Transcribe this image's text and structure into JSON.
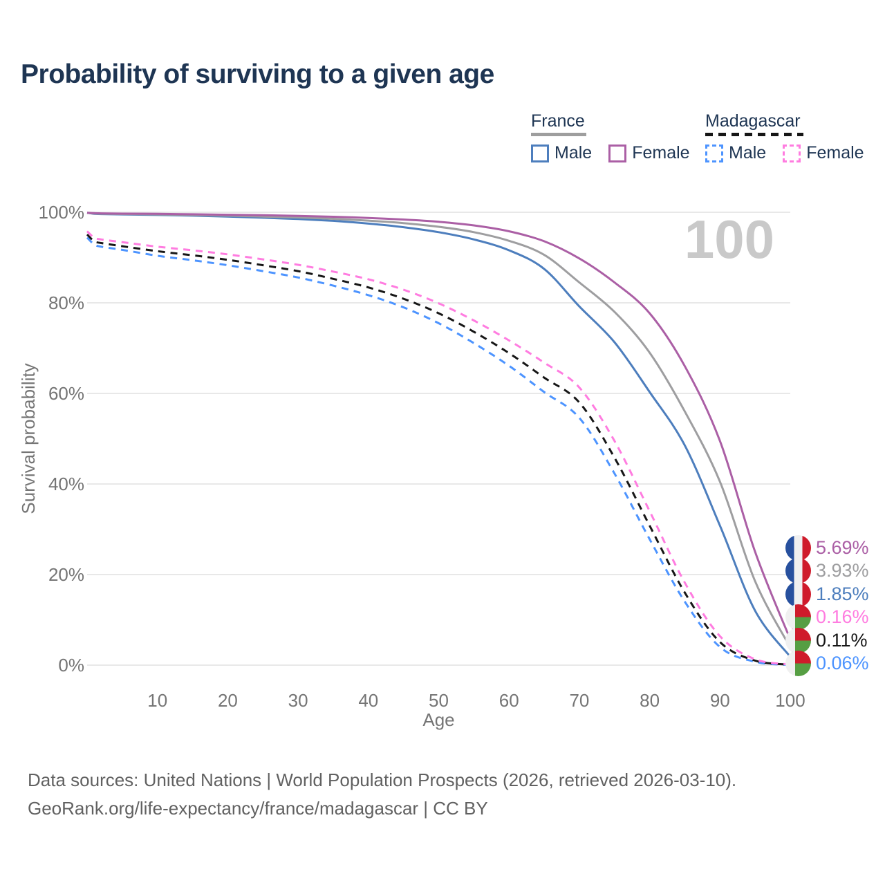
{
  "title": "Probability of surviving to a given age",
  "legend": {
    "groups": [
      {
        "name": "France",
        "line_style": "solid",
        "rule_color": "#9e9e9e",
        "items": [
          {
            "label": "Male",
            "color": "#4d7ebd",
            "dashed": false
          },
          {
            "label": "Female",
            "color": "#ab5fa5",
            "dashed": false
          }
        ]
      },
      {
        "name": "Madagascar",
        "line_style": "dashed",
        "rule_color": "#161616",
        "items": [
          {
            "label": "Male",
            "color": "#4d94ff",
            "dashed": true
          },
          {
            "label": "Female",
            "color": "#ff7ce0",
            "dashed": true
          }
        ]
      }
    ]
  },
  "chart_data": {
    "type": "line",
    "title": "Probability of surviving to a given age",
    "xlabel": "Age",
    "ylabel": "Survival probability",
    "xlim": [
      0,
      100
    ],
    "ylim": [
      0,
      100
    ],
    "grid": "horizontal",
    "legend_position": "top-right",
    "watermark": "100",
    "x_tick_values": [
      10,
      20,
      30,
      40,
      50,
      60,
      70,
      80,
      90,
      100
    ],
    "x_tick_labels": [
      "10",
      "20",
      "30",
      "40",
      "50",
      "60",
      "70",
      "80",
      "90",
      "100"
    ],
    "y_tick_values": [
      0,
      20,
      40,
      60,
      80,
      100
    ],
    "y_tick_labels": [
      "0%",
      "20%",
      "40%",
      "60%",
      "80%",
      "100%"
    ],
    "x": [
      0,
      1,
      2,
      5,
      10,
      15,
      20,
      25,
      30,
      35,
      40,
      45,
      50,
      55,
      60,
      65,
      70,
      75,
      80,
      85,
      90,
      95,
      100
    ],
    "series": [
      {
        "name": "France Female",
        "country": "France",
        "sex": "Female",
        "flag": "france",
        "color": "#ab5fa5",
        "dashed": false,
        "end_label": "5.69%",
        "values": [
          99.9,
          99.8,
          99.75,
          99.7,
          99.65,
          99.55,
          99.45,
          99.35,
          99.2,
          99.0,
          98.75,
          98.4,
          97.9,
          97.1,
          95.8,
          93.6,
          89.8,
          84.5,
          77.7,
          66.0,
          49.5,
          25.0,
          5.69
        ]
      },
      {
        "name": "France Overall",
        "country": "France",
        "sex": "Both",
        "flag": "france",
        "color": "#9e9ea0",
        "dashed": false,
        "end_label": "3.93%",
        "values": [
          99.9,
          99.72,
          99.68,
          99.62,
          99.52,
          99.4,
          99.25,
          99.05,
          98.85,
          98.55,
          98.15,
          97.6,
          96.8,
          95.6,
          93.7,
          90.6,
          84.5,
          78.0,
          69.0,
          56.0,
          40.5,
          18.5,
          3.93
        ]
      },
      {
        "name": "France Male",
        "country": "France",
        "sex": "Male",
        "flag": "france",
        "color": "#4d7ebd",
        "dashed": false,
        "end_label": "1.85%",
        "values": [
          99.9,
          99.65,
          99.6,
          99.52,
          99.4,
          99.25,
          99.05,
          98.8,
          98.5,
          98.1,
          97.5,
          96.7,
          95.6,
          94.0,
          91.6,
          87.5,
          79.2,
          71.3,
          60.3,
          48.5,
          30.8,
          12.0,
          1.85
        ]
      },
      {
        "name": "Madagascar Female",
        "country": "Madagascar",
        "sex": "Female",
        "flag": "madagascar",
        "color": "#ff7ce0",
        "dashed": true,
        "end_label": "0.16%",
        "values": [
          95.8,
          94.4,
          94.0,
          93.4,
          92.4,
          91.6,
          90.7,
          89.6,
          88.4,
          86.9,
          85.2,
          82.9,
          79.9,
          76.1,
          71.7,
          66.8,
          61.3,
          49.5,
          34.0,
          18.2,
          6.4,
          1.3,
          0.16
        ]
      },
      {
        "name": "Madagascar Overall",
        "country": "Madagascar",
        "sex": "Both",
        "flag": "madagascar",
        "color": "#161616",
        "dashed": true,
        "end_label": "0.11%",
        "values": [
          95.1,
          93.6,
          93.2,
          92.5,
          91.4,
          90.5,
          89.5,
          88.3,
          87.0,
          85.3,
          83.4,
          80.9,
          77.7,
          73.6,
          68.9,
          63.5,
          58.0,
          45.8,
          30.8,
          16.0,
          5.1,
          1.0,
          0.11
        ]
      },
      {
        "name": "Madagascar Male",
        "country": "Madagascar",
        "sex": "Male",
        "flag": "madagascar",
        "color": "#4d94ff",
        "dashed": true,
        "end_label": "0.06%",
        "values": [
          94.4,
          92.9,
          92.4,
          91.7,
          90.4,
          89.4,
          88.3,
          87.0,
          85.6,
          83.8,
          81.7,
          79.0,
          75.5,
          71.1,
          66.1,
          60.3,
          54.6,
          42.3,
          27.8,
          14.0,
          4.0,
          0.75,
          0.06
        ]
      }
    ]
  },
  "footer": {
    "line1": "Data sources: United Nations | World Population Prospects (2026, retrieved 2026-03-10).",
    "line2": "GeoRank.org/life-expectancy/france/madagascar | CC BY"
  }
}
